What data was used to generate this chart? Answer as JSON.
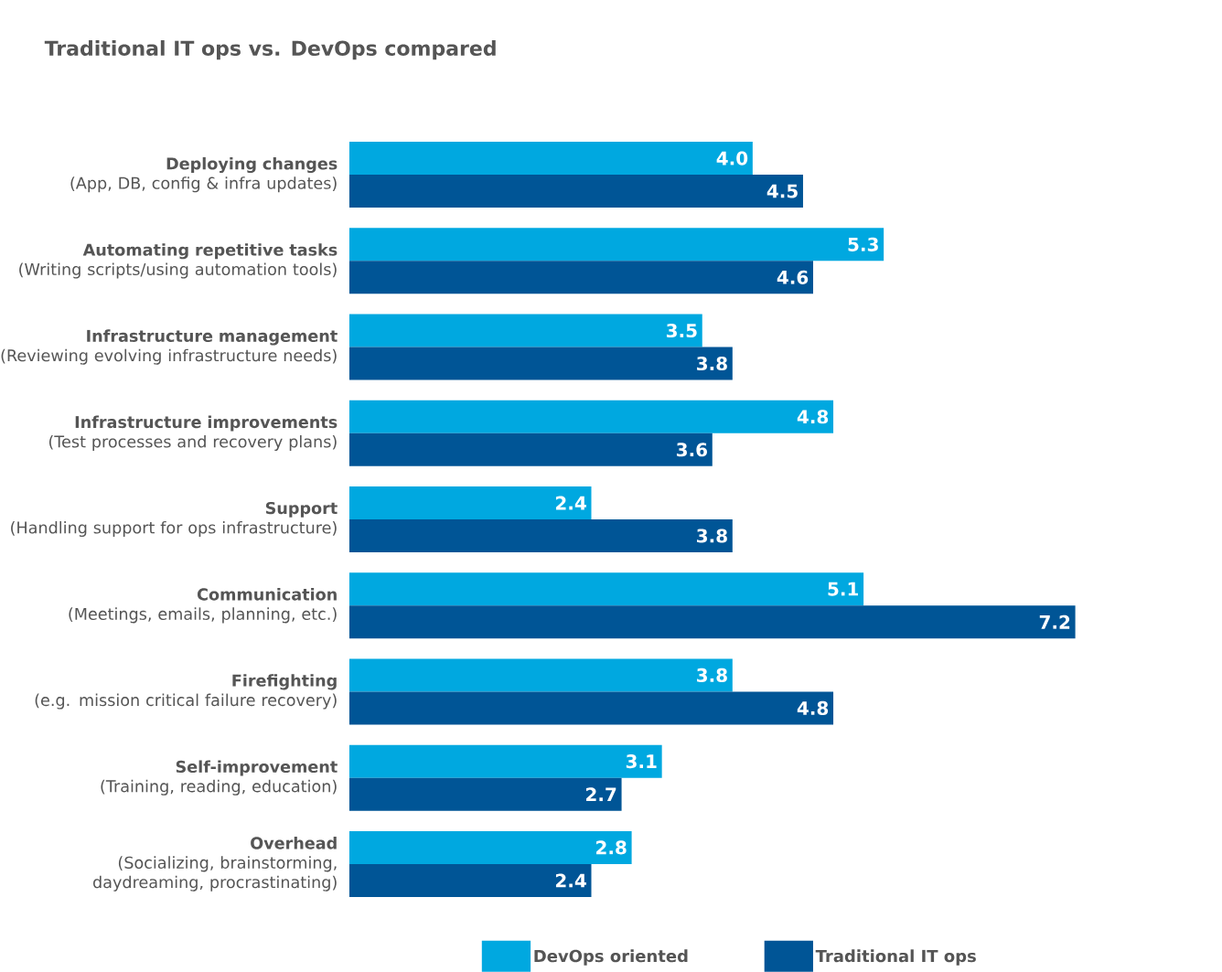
{
  "chart_data": {
    "type": "bar",
    "orientation": "horizontal",
    "title": "Traditional IT ops vs. DevOps compared",
    "categories": [
      "**Deploying changes**\n(App, DB, config & infra updates)",
      "**Automating repetitive tasks**\n(Writing scripts/using automation tools)",
      "**Infrastructure management**\n(Reviewing evolving infrastructure needs)",
      "**Infrastructure improvements**\n(Test processes and recovery plans)",
      "**Support**\n(Handling support for ops infrastructure)",
      "**Communication**\n(Meetings, emails, planning, etc.)",
      "**Firefighting**\n(e.g. mission critical failure recovery)",
      "**Self-improvement**\n(Training, reading, education)",
      "**Overhead**\n(Socializing, brainstorming,\ndaydreaming, procrastinating)"
    ],
    "series": [
      {
        "name": "DevOps oriented",
        "color": "#00a8e0",
        "values": [
          4.0,
          5.3,
          3.5,
          4.8,
          2.4,
          5.1,
          3.8,
          3.1,
          2.8
        ],
        "value_labels": [
          "4.0",
          "5.3",
          "3.5",
          "4.8",
          "2.4",
          "5.1",
          "3.8",
          "3.1",
          "2.8"
        ]
      },
      {
        "name": "Traditional IT ops",
        "color": "#005596",
        "values": [
          4.5,
          4.6,
          3.8,
          3.6,
          3.8,
          7.2,
          4.8,
          2.7,
          2.4
        ],
        "value_labels": [
          "4.5",
          "4.6",
          "3.8",
          "3.6",
          "3.8",
          "7.2",
          "4.8",
          "2.7",
          "2.4"
        ]
      }
    ],
    "legend": "bottom",
    "tick_labels": "y"
  }
}
